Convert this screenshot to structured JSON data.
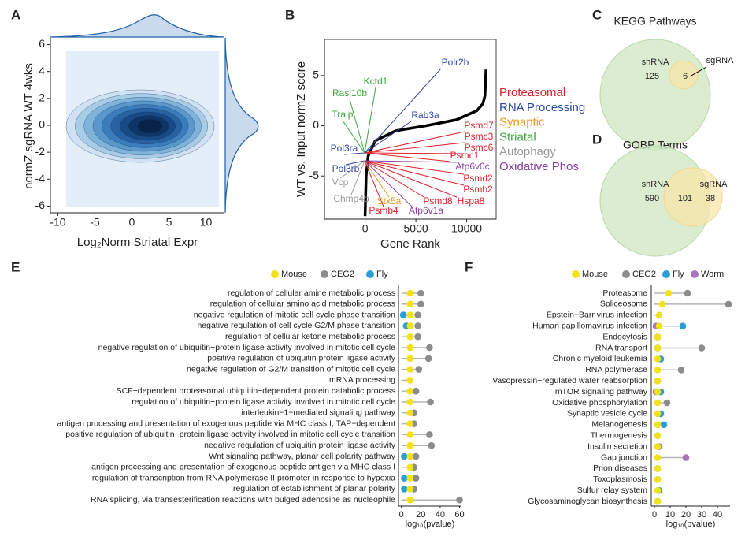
{
  "chart_data": [
    {
      "label": "A",
      "type": "kde",
      "xlabel": "Log₂Norm Striatal Expr",
      "ylabel": "normZ sgRNA WT 4wks",
      "xlim": [
        -11,
        12.5
      ],
      "ylim": [
        -6.5,
        6.5
      ],
      "xticks": [
        -10,
        -5,
        0,
        5,
        10
      ],
      "yticks": [
        -6,
        -4,
        -2,
        0,
        2,
        4,
        6
      ],
      "color": "#1f5fa8"
    },
    {
      "label": "B",
      "type": "rank",
      "xlabel": "Gene Rank",
      "ylabel": "WT vs. Input normZ score",
      "xlim": [
        -4000,
        12900
      ],
      "ylim": [
        -9.3,
        8.6
      ],
      "xticks": [
        0,
        5000,
        10000
      ],
      "yticks": [
        -5,
        0,
        5
      ],
      "x": [
        0,
        100,
        300,
        1000,
        3000,
        6000,
        9000,
        11000,
        11600,
        11800,
        11900
      ],
      "values": [
        -9,
        -5,
        -3,
        -1.5,
        -0.5,
        0,
        0.6,
        1.5,
        2.2,
        3,
        5.6
      ],
      "groups": [
        {
          "name": "Proteasomal",
          "color": "#e0202a",
          "genes": [
            "Psmd7",
            "Psmc3",
            "Psmc6",
            "Psmc1",
            "Psmd2",
            "Psmb2",
            "Psmd8",
            "Hspa8",
            "Psmb4"
          ]
        },
        {
          "name": "RNA Processing",
          "color": "#2b47a0",
          "genes": [
            "Polr2b",
            "Rab3a",
            "Pol3ra",
            "Pol3rb"
          ]
        },
        {
          "name": "Synaptic",
          "color": "#f0961e",
          "genes": [
            "Stx5a"
          ]
        },
        {
          "name": "Striatal",
          "color": "#3aa83a",
          "genes": [
            "Kctd1",
            "Rasl10b",
            "Traip"
          ]
        },
        {
          "name": "Autophagy",
          "color": "#999999",
          "genes": [
            "Vcp",
            "Chmp4b"
          ]
        },
        {
          "name": "Oxidative Phos",
          "color": "#8a3fa0",
          "genes": [
            "Atp6v0c",
            "Atp6v1a"
          ]
        }
      ]
    },
    {
      "label": "C",
      "type": "venn",
      "title": "KEGG Pathways",
      "sets": [
        {
          "name": "shRNA",
          "count": 125
        },
        {
          "name": "sgRNA"
        }
      ],
      "overlap": 6
    },
    {
      "label": "D",
      "type": "venn",
      "title": "GOBP Terms",
      "sets": [
        {
          "name": "shRNA",
          "count": 590
        },
        {
          "name": "sgRNA",
          "count": 38
        }
      ],
      "overlap": 101
    },
    {
      "label": "E",
      "type": "lollipop",
      "xlabel": "log₁₀(pvalue)",
      "xlim": [
        -3,
        62
      ],
      "xticks": [
        0,
        20,
        40,
        60
      ],
      "categories": [
        "regulation of cellular amine metabolic process",
        "regulation of cellular amino acid metabolic process",
        "negative regulation of mitotic cell cycle phase transition",
        "negative regulation of cell cycle G2/M phase transition",
        "regulation of cellular ketone metabolic process",
        "negative regulation of ubiquitin−protein ligase activity involved in mitotic cell cycle",
        "positive regulation of ubiquitin protein ligase activity",
        "negative regulation of G2/M transition of mitotic cell cycle",
        "mRNA processing",
        "SCF−dependent proteasomal ubiquitin−dependent protein catabolic process",
        "regulation of ubiquitin−protein ligase activity involved in mitotic cell cycle",
        "interleukin−1−mediated signaling pathway",
        "antigen processing and presentation of exogenous peptide via MHC class I, TAP−dependent",
        "positive regulation of ubiquitin−protein ligase activity involved in mitotic cell cycle transition",
        "negative regulation of ubiquitin protein ligase activity",
        "Wnt signaling pathway, planar cell polarity pathway",
        "antigen processing and presentation of exogenous peptide antigen via MHC class I",
        "regulation of transcription from RNA polymerase II promoter in response to hypoxia",
        "regulation of establishment of planar polarity",
        "RNA splicing, via transesterification reactions with bulged adenosine as nucleophile"
      ],
      "series": [
        {
          "name": "Mouse",
          "color": "#f2e21c",
          "values": [
            9,
            9,
            9,
            9,
            9,
            9,
            9,
            9,
            9,
            9,
            9,
            9,
            9,
            9,
            9,
            9,
            9,
            9,
            9,
            9
          ]
        },
        {
          "name": "CEG2",
          "color": "#8c8c8c",
          "values": [
            20,
            20,
            17,
            17,
            17,
            29,
            28,
            18,
            null,
            15,
            30,
            13,
            13,
            29,
            31,
            15,
            13,
            15,
            13,
            60
          ]
        },
        {
          "name": "Fly",
          "color": "#2a9fd6",
          "values": [
            null,
            null,
            2,
            5,
            null,
            null,
            null,
            null,
            null,
            null,
            null,
            null,
            null,
            null,
            null,
            3,
            null,
            3,
            3,
            null
          ]
        }
      ]
    },
    {
      "label": "F",
      "type": "lollipop",
      "xlabel": "log₁₀(pvalue)",
      "xlim": [
        -2,
        48
      ],
      "xticks": [
        0,
        10,
        20,
        30,
        40
      ],
      "categories": [
        "Proteasome",
        "Spliceosome",
        "Epstein−Barr virus infection",
        "Human papillomavirus infection",
        "Endocytosis",
        "RNA transport",
        "Chronic myeloid leukemia",
        "RNA polymerase",
        "Vasopressin−regulated water reabsorption",
        "mTOR signaling pathway",
        "Oxidative phosphorylation",
        "Synaptic vesicle cycle",
        "Melanogenesis",
        "Thermogenesis",
        "Insulin secretion",
        "Gap junction",
        "Prion diseases",
        "Toxoplasmosis",
        "Sulfur relay system",
        "Glycosaminoglycan biosynthesis"
      ],
      "series": [
        {
          "name": "Mouse",
          "color": "#f2e21c",
          "values": [
            9,
            5,
            3,
            3,
            2,
            2,
            2,
            2,
            2,
            2,
            2,
            2,
            2,
            2,
            2,
            2,
            2,
            2,
            2,
            2
          ]
        },
        {
          "name": "CEG2",
          "color": "#8c8c8c",
          "values": [
            21,
            47,
            null,
            null,
            null,
            30,
            null,
            17,
            null,
            null,
            8,
            null,
            null,
            null,
            null,
            null,
            null,
            null,
            null,
            null
          ]
        },
        {
          "name": "Fly",
          "color": "#2a9fd6",
          "values": [
            null,
            null,
            null,
            18,
            2,
            2,
            4,
            null,
            2,
            4,
            null,
            4,
            6,
            2,
            2,
            null,
            2,
            2,
            3,
            2
          ]
        },
        {
          "name": "Worm",
          "color": "#a874c0",
          "values": [
            null,
            null,
            null,
            1,
            null,
            null,
            null,
            null,
            null,
            1,
            null,
            null,
            null,
            null,
            3,
            20,
            null,
            null,
            null,
            null
          ]
        }
      ]
    }
  ]
}
